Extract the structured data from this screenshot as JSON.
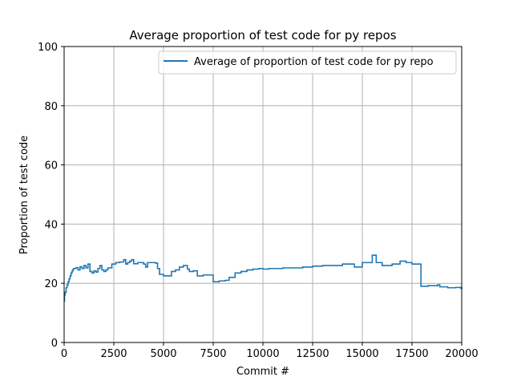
{
  "chart_data": {
    "type": "line",
    "title": "Average proportion of test code for py repos",
    "xlabel": "Commit #",
    "ylabel": "Proportion of test code",
    "xlim": [
      0,
      20000
    ],
    "ylim": [
      0,
      100
    ],
    "xticks": [
      0,
      2500,
      5000,
      7500,
      10000,
      12500,
      15000,
      17500,
      20000
    ],
    "xtick_labels": [
      "0",
      "2500",
      "5000",
      "7500",
      "10000",
      "12500",
      "15000",
      "17500",
      "20000"
    ],
    "yticks": [
      0,
      20,
      40,
      60,
      80,
      100
    ],
    "ytick_labels": [
      "0",
      "20",
      "40",
      "60",
      "80",
      "100"
    ],
    "grid": true,
    "legend_position": "top-right",
    "colors": {
      "series": "#1f77b4",
      "grid": "#b0b0b0"
    },
    "series": [
      {
        "name": "Average of proportion of test code for py repo",
        "step": true,
        "x": [
          0,
          20,
          50,
          100,
          150,
          200,
          250,
          300,
          350,
          400,
          450,
          500,
          600,
          700,
          800,
          900,
          1000,
          1100,
          1200,
          1300,
          1400,
          1500,
          1600,
          1700,
          1800,
          1900,
          2000,
          2100,
          2200,
          2400,
          2600,
          2800,
          3000,
          3100,
          3200,
          3300,
          3400,
          3500,
          3700,
          4000,
          4100,
          4200,
          4400,
          4600,
          4700,
          4800,
          5000,
          5400,
          5600,
          5800,
          6000,
          6200,
          6300,
          6500,
          6700,
          7000,
          7400,
          7500,
          7800,
          8100,
          8300,
          8600,
          8900,
          9200,
          9500,
          9800,
          10000,
          10300,
          10600,
          11000,
          11500,
          12000,
          12500,
          13000,
          13500,
          14000,
          14400,
          14600,
          15000,
          15500,
          15700,
          16000,
          16500,
          16900,
          17200,
          17500,
          17950,
          18300,
          18800,
          18900,
          19300,
          19700,
          19950,
          20000
        ],
        "y": [
          14,
          16,
          17,
          18.5,
          19.5,
          20.5,
          21.5,
          22.5,
          23.5,
          24.2,
          24.8,
          25,
          25.3,
          24.5,
          25.6,
          25,
          26,
          25.2,
          26.5,
          24,
          23.5,
          24.2,
          23.8,
          25,
          26,
          24.5,
          24,
          24.5,
          25.2,
          26.5,
          27,
          27.2,
          28,
          26.5,
          27,
          27.5,
          28,
          26.6,
          27,
          26.5,
          25.5,
          27,
          27,
          26.8,
          25,
          23,
          22.5,
          24,
          24.5,
          25.5,
          26,
          24.8,
          24,
          24.2,
          22.5,
          22.8,
          22.8,
          20.5,
          20.8,
          21,
          22,
          23.5,
          24,
          24.5,
          24.8,
          25,
          24.8,
          25,
          25,
          25.2,
          25.2,
          25.5,
          25.8,
          26,
          26,
          26.5,
          26.5,
          25.5,
          27,
          29.5,
          27,
          26,
          26.5,
          27.5,
          27,
          26.5,
          19,
          19.2,
          19.5,
          18.8,
          18.5,
          18.6,
          18.3,
          18.8
        ]
      }
    ]
  }
}
